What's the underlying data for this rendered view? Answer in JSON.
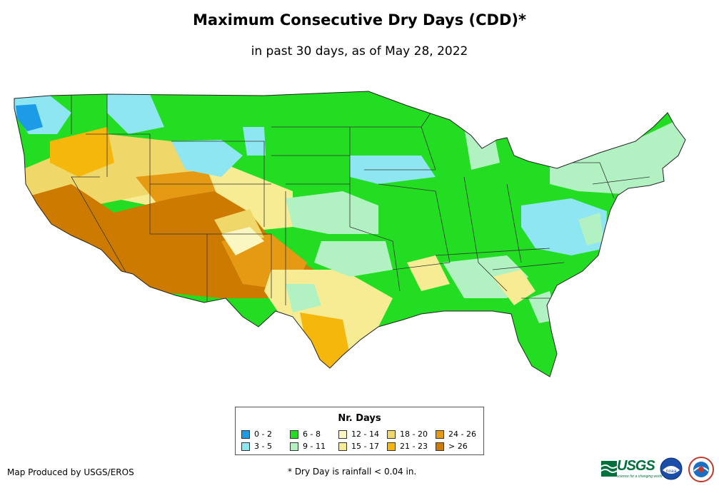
{
  "title": "Maximum Consecutive Dry Days (CDD)*",
  "subtitle": "in past 30 days, as of May 28, 2022",
  "legend": {
    "title": "Nr. Days",
    "items": [
      {
        "label": "0 - 2",
        "color": "#1e9be6"
      },
      {
        "label": "3 - 5",
        "color": "#8ee6f2"
      },
      {
        "label": "6 - 8",
        "color": "#22dd22"
      },
      {
        "label": "9 - 11",
        "color": "#b2f2c2"
      },
      {
        "label": "12 - 14",
        "color": "#fbf7c2"
      },
      {
        "label": "15 - 17",
        "color": "#f7ec94"
      },
      {
        "label": "18 - 20",
        "color": "#f0d76a"
      },
      {
        "label": "21 - 23",
        "color": "#f5b70c"
      },
      {
        "label": "24 - 26",
        "color": "#e69a14"
      },
      {
        "label": "> 26",
        "color": "#cc7a00"
      }
    ]
  },
  "footer": {
    "credit": "Map Produced by USGS/EROS",
    "footnote": "* Dry Day is rainfall < 0.04 in.",
    "usgs_logo": "USGS",
    "usgs_tagline": "science for a changing world",
    "noaa_logo": "noaa"
  },
  "icons": {
    "usgs": "usgs-logo-icon",
    "noaa": "noaa-logo-icon",
    "nws": "nws-logo-icon"
  }
}
